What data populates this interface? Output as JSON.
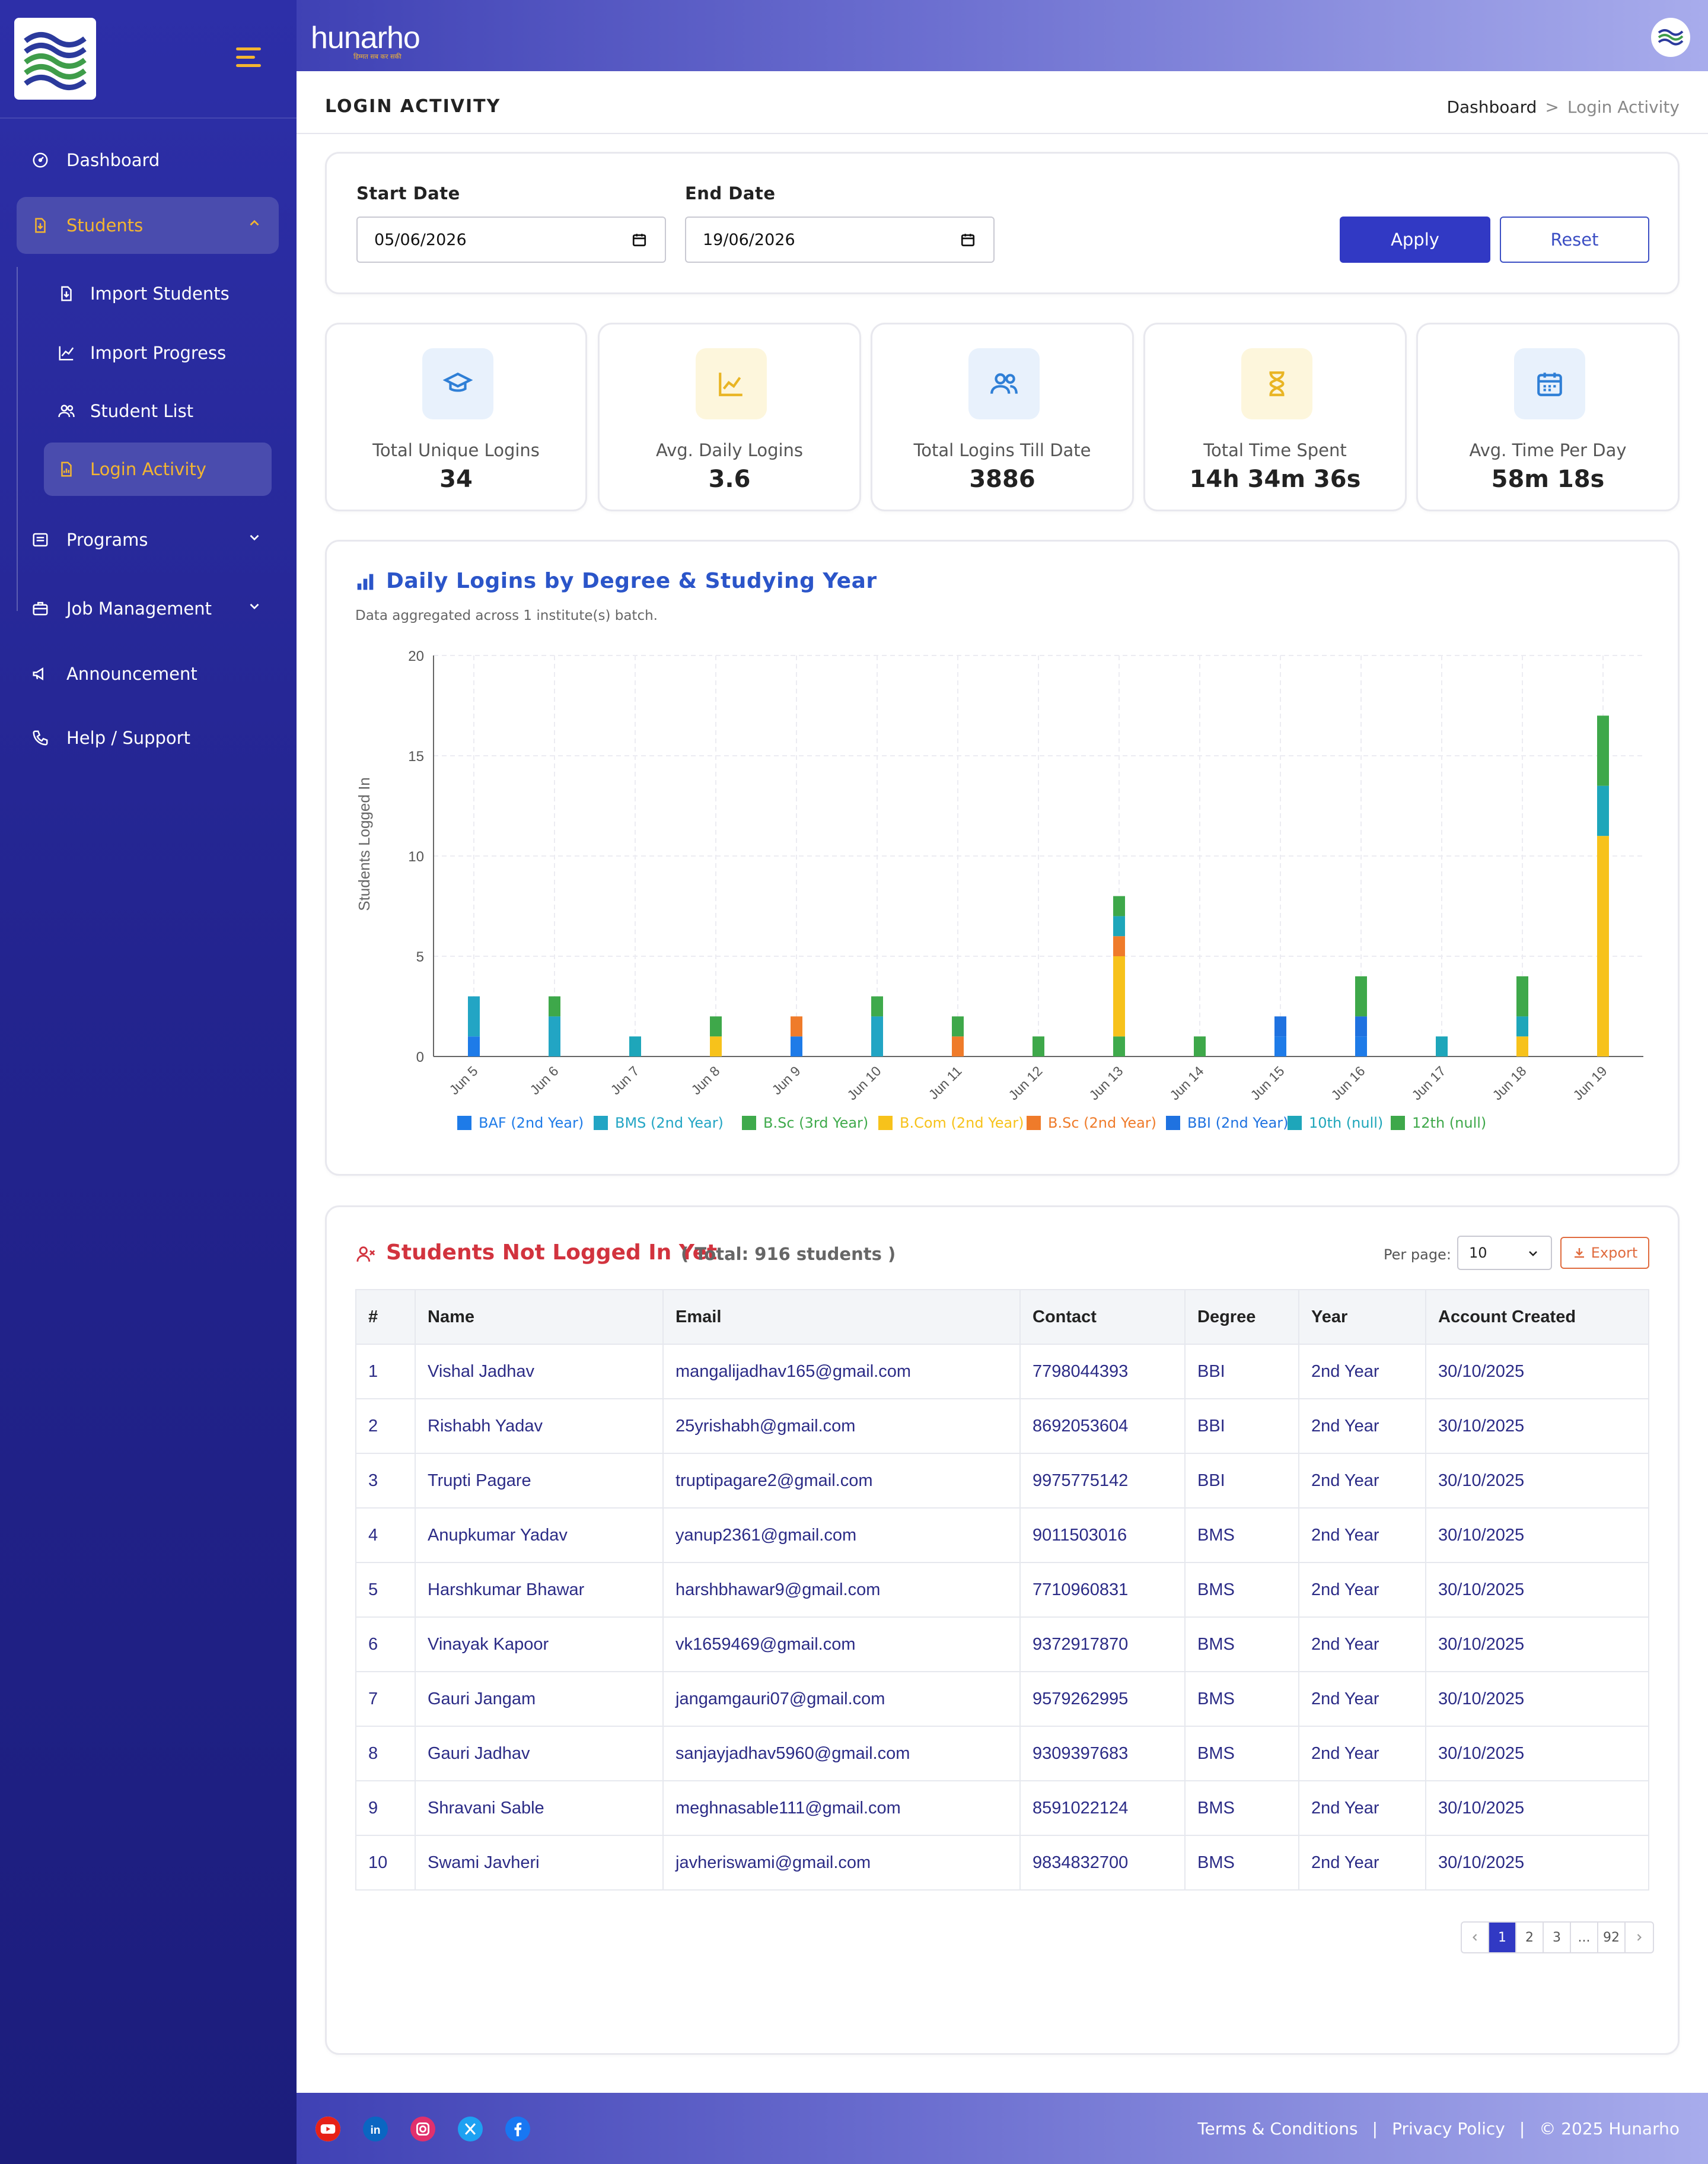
{
  "brand": {
    "name": "hunarho",
    "tagline": "हिम्मत सब कर सकी"
  },
  "sidebar": {
    "items": [
      {
        "label": "Dashboard",
        "icon": "dashboard-icon"
      },
      {
        "label": "Students",
        "icon": "file-icon"
      },
      {
        "label": "Programs",
        "icon": "list-icon"
      },
      {
        "label": "Job Management",
        "icon": "briefcase-icon"
      },
      {
        "label": "Announcement",
        "icon": "megaphone-icon"
      },
      {
        "label": "Help / Support",
        "icon": "phone-icon"
      }
    ],
    "students_sub": [
      {
        "label": "Import Students",
        "icon": "file-import-icon"
      },
      {
        "label": "Import Progress",
        "icon": "trend-icon"
      },
      {
        "label": "Student List",
        "icon": "users-icon"
      },
      {
        "label": "Login Activity",
        "icon": "report-icon"
      }
    ]
  },
  "page": {
    "title": "LOGIN ACTIVITY",
    "breadcrumb": {
      "root": "Dashboard",
      "sep": ">",
      "current": "Login Activity"
    }
  },
  "filters": {
    "start_label": "Start Date",
    "start_value": "05/06/2026",
    "end_label": "End Date",
    "end_value": "19/06/2026",
    "apply": "Apply",
    "reset": "Reset"
  },
  "stats": [
    {
      "label": "Total Unique Logins",
      "value": "34",
      "icon": "graduation-cap-icon",
      "bg": "#e8f1fc",
      "fg": "#2f7fd6"
    },
    {
      "label": "Avg. Daily Logins",
      "value": "3.6",
      "icon": "line-chart-icon",
      "bg": "#fdf6dc",
      "fg": "#e9b524"
    },
    {
      "label": "Total Logins Till Date",
      "value": "3886",
      "icon": "users-icon",
      "bg": "#e8f1fc",
      "fg": "#2f7fd6"
    },
    {
      "label": "Total Time Spent",
      "value": "14h 34m 36s",
      "icon": "hourglass-icon",
      "bg": "#fdf6dc",
      "fg": "#e9b524"
    },
    {
      "label": "Avg. Time Per Day",
      "value": "58m 18s",
      "icon": "calendar-icon",
      "bg": "#e8f1fc",
      "fg": "#2f7fd6"
    }
  ],
  "chart_data": {
    "type": "bar",
    "stacked": true,
    "title": "Daily Logins by Degree & Studying Year",
    "subtitle": "Data aggregated across 1 institute(s) batch.",
    "ylabel": "Students Logged In",
    "xlabel": "",
    "ylim": [
      0,
      20
    ],
    "yticks": [
      0,
      5,
      10,
      15,
      20
    ],
    "grid": true,
    "legend_position": "bottom",
    "categories": [
      "Jun 5",
      "Jun 6",
      "Jun 7",
      "Jun 8",
      "Jun 9",
      "Jun 10",
      "Jun 11",
      "Jun 12",
      "Jun 13",
      "Jun 14",
      "Jun 15",
      "Jun 16",
      "Jun 17",
      "Jun 18",
      "Jun 19"
    ],
    "series": [
      {
        "name": "BAF (2nd Year)",
        "color": "#1e7be8",
        "values": [
          1,
          0,
          0,
          0,
          1,
          0,
          0,
          0,
          0,
          0,
          1,
          1,
          0,
          0,
          0
        ]
      },
      {
        "name": "BMS (2nd Year)",
        "color": "#22a5c4",
        "values": [
          2,
          2,
          0,
          0,
          0,
          2,
          0,
          0,
          0,
          0,
          0,
          0,
          0,
          0,
          0
        ]
      },
      {
        "name": "B.Sc (3rd Year)",
        "color": "#3faa4c",
        "values": [
          0,
          0,
          0,
          0,
          0,
          1,
          0,
          0,
          1,
          0,
          0,
          0,
          0,
          0,
          0
        ]
      },
      {
        "name": "B.Com (2nd Year)",
        "color": "#f7c21b",
        "values": [
          0,
          0,
          0,
          1,
          0,
          0,
          0,
          0,
          4,
          0,
          0,
          0,
          0,
          1,
          11
        ]
      },
      {
        "name": "B.Sc (2nd Year)",
        "color": "#ef7b2a",
        "values": [
          0,
          0,
          0,
          0,
          1,
          0,
          1,
          0,
          1,
          0,
          0,
          0,
          0,
          0,
          0
        ]
      },
      {
        "name": "BBI (2nd Year)",
        "color": "#1f72e0",
        "values": [
          0,
          0,
          0,
          0,
          0,
          0,
          0,
          0,
          0,
          0,
          1,
          1,
          0,
          0,
          0
        ]
      },
      {
        "name": "10th (null)",
        "color": "#1ea6ba",
        "values": [
          0,
          0,
          1,
          0,
          0,
          0,
          0,
          0,
          1,
          0,
          0,
          0,
          1,
          1,
          2.5
        ]
      },
      {
        "name": "12th (null)",
        "color": "#3ea84a",
        "values": [
          0,
          1,
          0,
          1,
          0,
          0,
          1,
          1,
          1,
          1,
          0,
          2,
          0,
          2,
          3.5
        ]
      }
    ]
  },
  "table": {
    "title": "Students Not Logged In Yet",
    "total": "( Total: 916 students )",
    "per_page_label": "Per page:",
    "per_page_value": "10",
    "export": "Export",
    "headers": [
      "#",
      "Name",
      "Email",
      "Contact",
      "Degree",
      "Year",
      "Account Created"
    ],
    "rows": [
      [
        "1",
        "Vishal Jadhav",
        "mangalijadhav165@gmail.com",
        "7798044393",
        "BBI",
        "2nd Year",
        "30/10/2025"
      ],
      [
        "2",
        "Rishabh Yadav",
        "25yrishabh@gmail.com",
        "8692053604",
        "BBI",
        "2nd Year",
        "30/10/2025"
      ],
      [
        "3",
        "Trupti Pagare",
        "truptipagare2@gmail.com",
        "9975775142",
        "BBI",
        "2nd Year",
        "30/10/2025"
      ],
      [
        "4",
        "Anupkumar Yadav",
        "yanup2361@gmail.com",
        "9011503016",
        "BMS",
        "2nd Year",
        "30/10/2025"
      ],
      [
        "5",
        "Harshkumar Bhawar",
        "harshbhawar9@gmail.com",
        "7710960831",
        "BMS",
        "2nd Year",
        "30/10/2025"
      ],
      [
        "6",
        "Vinayak Kapoor",
        "vk1659469@gmail.com",
        "9372917870",
        "BMS",
        "2nd Year",
        "30/10/2025"
      ],
      [
        "7",
        "Gauri Jangam",
        "jangamgauri07@gmail.com",
        "9579262995",
        "BMS",
        "2nd Year",
        "30/10/2025"
      ],
      [
        "8",
        "Gauri Jadhav",
        "sanjayjadhav5960@gmail.com",
        "9309397683",
        "BMS",
        "2nd Year",
        "30/10/2025"
      ],
      [
        "9",
        "Shravani Sable",
        "meghnasable111@gmail.com",
        "8591022124",
        "BMS",
        "2nd Year",
        "30/10/2025"
      ],
      [
        "10",
        "Swami Javheri",
        "javheriswami@gmail.com",
        "9834832700",
        "BMS",
        "2nd Year",
        "30/10/2025"
      ]
    ],
    "pagination": [
      "1",
      "2",
      "3",
      "...",
      "92"
    ]
  },
  "footer": {
    "social": [
      {
        "name": "youtube-icon",
        "color": "#e62117"
      },
      {
        "name": "linkedin-icon",
        "color": "#0a66c2"
      },
      {
        "name": "instagram-icon",
        "color": "#e1306c"
      },
      {
        "name": "x-icon",
        "color": "#1da1f2"
      },
      {
        "name": "facebook-icon",
        "color": "#1877f2"
      }
    ],
    "terms": "Terms & Conditions",
    "privacy": "Privacy Policy",
    "sep": "|",
    "copyright": "© 2025 Hunarho"
  }
}
